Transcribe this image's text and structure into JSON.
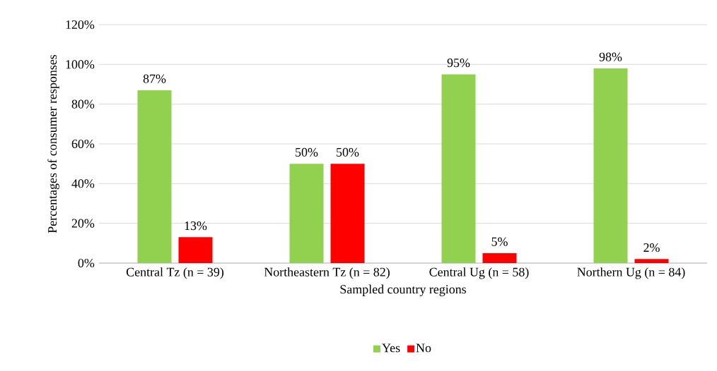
{
  "chart_data": {
    "type": "bar",
    "xlabel": "Sampled country regions",
    "ylabel": "Percentages of consumer responses",
    "categories": [
      "Central Tz (n = 39)",
      "Northeastern Tz (n = 82)",
      "Central Ug (n = 58)",
      "Northern Ug (n = 84)"
    ],
    "series": [
      {
        "name": "Yes",
        "color": "#92d050",
        "values": [
          87,
          50,
          95,
          98
        ],
        "value_labels": [
          "87%",
          "50%",
          "95%",
          "98%"
        ]
      },
      {
        "name": "No",
        "color": "#ff0000",
        "values": [
          13,
          50,
          5,
          2
        ],
        "value_labels": [
          "13%",
          "50%",
          "5%",
          "2%"
        ]
      }
    ],
    "ylim": [
      0,
      120
    ],
    "yticks": [
      {
        "value": 0,
        "label": "0%"
      },
      {
        "value": 20,
        "label": "20%"
      },
      {
        "value": 40,
        "label": "40%"
      },
      {
        "value": 60,
        "label": "60%"
      },
      {
        "value": 80,
        "label": "80%"
      },
      {
        "value": 100,
        "label": "100%"
      },
      {
        "value": 120,
        "label": "120%"
      }
    ],
    "grid": "y",
    "legend": "bottom"
  }
}
